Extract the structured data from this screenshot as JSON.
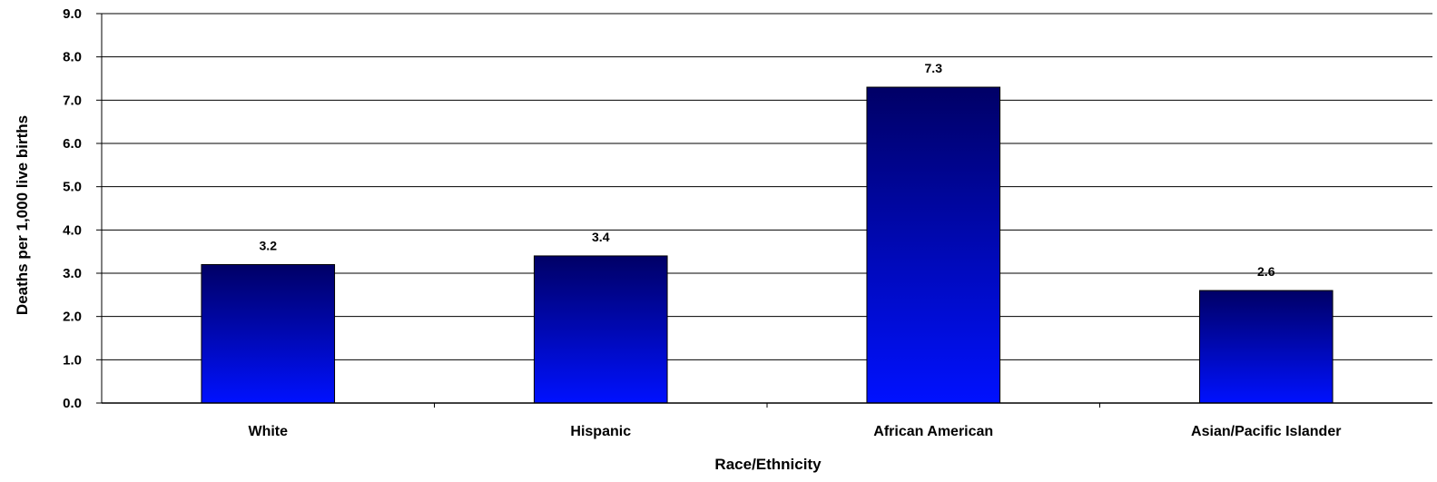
{
  "chart_data": {
    "type": "bar",
    "categories": [
      "White",
      "Hispanic",
      "African American",
      "Asian/Pacific Islander"
    ],
    "values": [
      3.2,
      3.4,
      7.3,
      2.6
    ],
    "data_labels": [
      "3.2",
      "3.4",
      "7.3",
      "2.6"
    ],
    "xlabel": "Race/Ethnicity",
    "ylabel": "Deaths per 1,000 live births",
    "ylim": [
      0,
      9
    ],
    "yticks": [
      0,
      1,
      2,
      3,
      4,
      5,
      6,
      7,
      8,
      9
    ],
    "ytick_labels": [
      "0.0",
      "1.0",
      "2.0",
      "3.0",
      "4.0",
      "5.0",
      "6.0",
      "7.0",
      "8.0",
      "9.0"
    ],
    "grid": true,
    "bar_color_top": "#000066",
    "bar_color_bottom": "#0011ff"
  }
}
